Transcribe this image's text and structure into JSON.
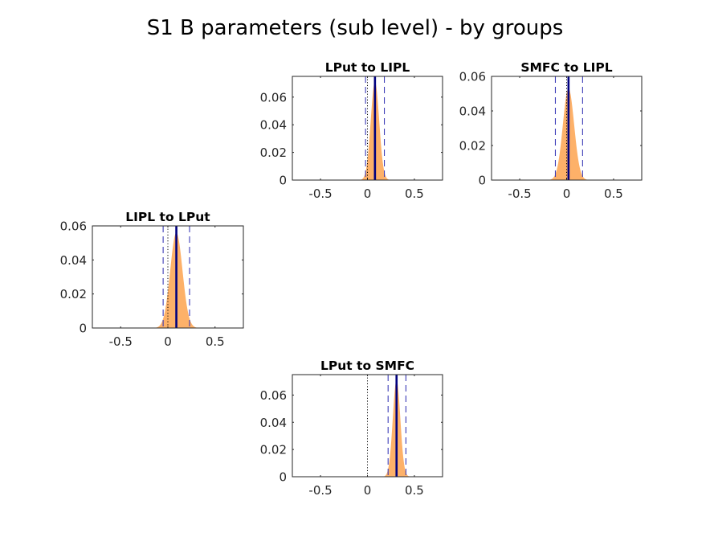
{
  "figure": {
    "title": "S1 B parameters (sub level) - by groups"
  },
  "colors": {
    "histogram": "#FDB169",
    "mean_line": "#00007F",
    "ci_line": "#3B3BB7",
    "zero_line": "#000000",
    "axes": "#262626"
  },
  "chart_data": [
    {
      "type": "area",
      "title": "LPut to LIPL",
      "xlim": [
        -0.8,
        0.8
      ],
      "ylim": [
        0,
        0.075
      ],
      "xticks": [
        -0.5,
        0,
        0.5
      ],
      "xtick_labels": [
        "-0.5",
        "0",
        "0.5"
      ],
      "yticks": [
        0,
        0.02,
        0.04,
        0.06
      ],
      "ytick_labels": [
        "0",
        "0.02",
        "0.04",
        "0.06"
      ],
      "mean": 0.08,
      "sd": 0.045,
      "ci": [
        -0.02,
        0.18
      ],
      "zero": 0,
      "grid": false,
      "distribution_peak": 0.071
    },
    {
      "type": "area",
      "title": "SMFC to LIPL",
      "xlim": [
        -0.8,
        0.8
      ],
      "ylim": [
        0,
        0.06
      ],
      "xticks": [
        -0.5,
        0,
        0.5
      ],
      "xtick_labels": [
        "-0.5",
        "0",
        "0.5"
      ],
      "yticks": [
        0,
        0.02,
        0.04,
        0.06
      ],
      "ytick_labels": [
        "0",
        "0.02",
        "0.04",
        "0.06"
      ],
      "mean": 0.02,
      "sd": 0.06,
      "ci": [
        -0.12,
        0.17
      ],
      "zero": 0,
      "grid": false,
      "distribution_peak": 0.053
    },
    {
      "type": "area",
      "title": "LIPL to LPut",
      "xlim": [
        -0.8,
        0.8
      ],
      "ylim": [
        0,
        0.06
      ],
      "xticks": [
        -0.5,
        0,
        0.5
      ],
      "xtick_labels": [
        "-0.5",
        "0",
        "0.5"
      ],
      "yticks": [
        0,
        0.02,
        0.04,
        0.06
      ],
      "ytick_labels": [
        "0",
        "0.02",
        "0.04",
        "0.06"
      ],
      "mean": 0.09,
      "sd": 0.065,
      "ci": [
        -0.05,
        0.23
      ],
      "zero": 0,
      "grid": false,
      "distribution_peak": 0.056
    },
    {
      "type": "area",
      "title": "LPut to SMFC",
      "xlim": [
        -0.8,
        0.8
      ],
      "ylim": [
        0,
        0.075
      ],
      "xticks": [
        -0.5,
        0,
        0.5
      ],
      "xtick_labels": [
        "-0.5",
        "0",
        "0.5"
      ],
      "yticks": [
        0,
        0.02,
        0.04,
        0.06
      ],
      "ytick_labels": [
        "0",
        "0.02",
        "0.04",
        "0.06"
      ],
      "mean": 0.31,
      "sd": 0.04,
      "ci": [
        0.22,
        0.41
      ],
      "zero": 0,
      "grid": false,
      "distribution_peak": 0.071
    }
  ]
}
